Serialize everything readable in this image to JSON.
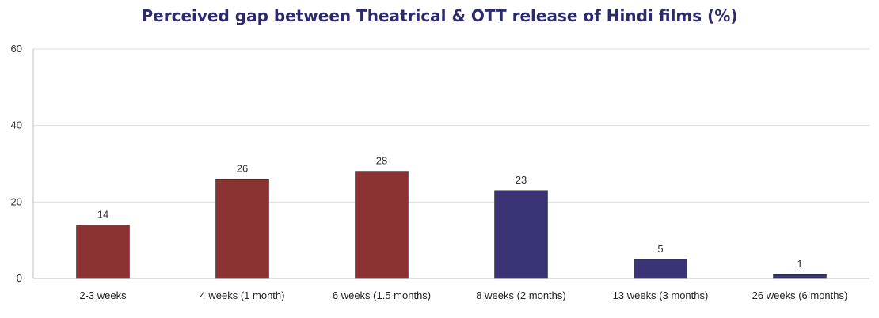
{
  "chart_data": {
    "type": "bar",
    "title": "Perceived gap between Theatrical & OTT release of Hindi films (%)",
    "xlabel": "",
    "ylabel": "",
    "ylim": [
      0,
      60
    ],
    "yticks": [
      0,
      20,
      40,
      60
    ],
    "grid": true,
    "legend": "none",
    "categories": [
      "2-3 weeks",
      "4 weeks (1 month)",
      "6 weeks (1.5 months)",
      "8 weeks (2 months)",
      "13 weeks (3 months)",
      "26 weeks (6 months)"
    ],
    "values": [
      14,
      26,
      28,
      23,
      5,
      1
    ],
    "colors": [
      "#8b3232",
      "#8b3232",
      "#8b3232",
      "#383475",
      "#383475",
      "#383475"
    ]
  }
}
